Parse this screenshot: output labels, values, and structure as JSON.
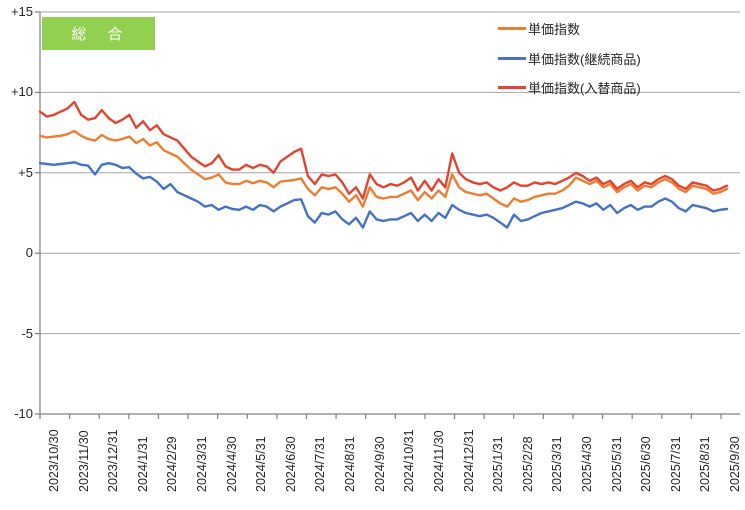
{
  "title": {
    "text": "総　合",
    "bg_color": "#92D050",
    "text_color": "#FFFFFF"
  },
  "legend": {
    "position": "top-right",
    "items": [
      {
        "label": "単価指数",
        "color": "#ED7D31"
      },
      {
        "label": "単価指数(継続商品)",
        "color": "#4472C4"
      },
      {
        "label": "単価指数(入替商品)",
        "color": "#E2452F"
      }
    ]
  },
  "colors": {
    "background": "#FFFFFF",
    "gridline": "#A6A6A6",
    "axis": "#808080",
    "tick_text": "#262626"
  },
  "chart_data": {
    "type": "line",
    "title": "総　合",
    "xlabel": "",
    "ylabel": "",
    "ylim": [
      -10,
      15
    ],
    "y_ticks": [
      15,
      10,
      5,
      0,
      -5,
      -10
    ],
    "y_tick_labels": [
      "+15",
      "+10",
      "+5",
      "0",
      "-5",
      "-10"
    ],
    "grid": true,
    "legend_position": "top-right",
    "x_resolution": "weekly points between monthly ticks",
    "x_tick_labels": [
      "2023/10/30",
      "2023/11/30",
      "2023/12/31",
      "2024/1/31",
      "2024/2/29",
      "2024/3/31",
      "2024/4/30",
      "2024/5/31",
      "2024/6/30",
      "2024/7/31",
      "2024/8/31",
      "2024/9/30",
      "2024/10/31",
      "2024/11/30",
      "2024/12/31",
      "2025/1/31",
      "2025/2/28",
      "2025/3/31",
      "2025/4/30",
      "2025/5/31",
      "2025/6/30",
      "2025/7/31",
      "2025/8/31",
      "2025/9/30"
    ],
    "series": [
      {
        "name": "単価指数",
        "color": "#ED7D31",
        "values": [
          7.3,
          7.2,
          7.25,
          7.3,
          7.4,
          7.6,
          7.3,
          7.1,
          7.0,
          7.35,
          7.1,
          7.0,
          7.1,
          7.25,
          6.85,
          7.1,
          6.7,
          6.9,
          6.4,
          6.2,
          6.0,
          5.6,
          5.2,
          4.9,
          4.6,
          4.7,
          4.9,
          4.4,
          4.3,
          4.3,
          4.5,
          4.35,
          4.5,
          4.4,
          4.1,
          4.45,
          4.5,
          4.55,
          4.65,
          4.0,
          3.6,
          4.1,
          4.0,
          4.1,
          3.7,
          3.2,
          3.6,
          2.9,
          4.1,
          3.5,
          3.4,
          3.5,
          3.5,
          3.7,
          3.9,
          3.3,
          3.8,
          3.4,
          3.9,
          3.5,
          4.9,
          4.1,
          3.8,
          3.7,
          3.6,
          3.7,
          3.4,
          3.1,
          2.9,
          3.4,
          3.2,
          3.3,
          3.5,
          3.6,
          3.7,
          3.7,
          3.9,
          4.2,
          4.7,
          4.5,
          4.3,
          4.5,
          4.1,
          4.3,
          3.8,
          4.1,
          4.3,
          3.9,
          4.2,
          4.1,
          4.4,
          4.6,
          4.4,
          4.0,
          3.8,
          4.2,
          4.1,
          4.0,
          3.7,
          3.8,
          4.0
        ]
      },
      {
        "name": "単価指数(継続商品)",
        "color": "#4472C4",
        "values": [
          5.6,
          5.55,
          5.5,
          5.55,
          5.6,
          5.65,
          5.5,
          5.45,
          4.9,
          5.5,
          5.6,
          5.5,
          5.3,
          5.35,
          4.95,
          4.65,
          4.75,
          4.45,
          4.0,
          4.3,
          3.8,
          3.6,
          3.4,
          3.2,
          2.9,
          3.0,
          2.7,
          2.9,
          2.75,
          2.7,
          2.9,
          2.7,
          3.0,
          2.9,
          2.6,
          2.9,
          3.1,
          3.3,
          3.35,
          2.3,
          1.9,
          2.5,
          2.4,
          2.6,
          2.1,
          1.8,
          2.2,
          1.6,
          2.6,
          2.1,
          2.0,
          2.1,
          2.1,
          2.3,
          2.5,
          2.0,
          2.4,
          2.0,
          2.5,
          2.2,
          3.0,
          2.7,
          2.5,
          2.4,
          2.3,
          2.4,
          2.2,
          1.9,
          1.6,
          2.4,
          2.0,
          2.1,
          2.3,
          2.5,
          2.6,
          2.7,
          2.8,
          3.0,
          3.2,
          3.1,
          2.9,
          3.1,
          2.7,
          3.0,
          2.5,
          2.8,
          3.0,
          2.7,
          2.9,
          2.9,
          3.2,
          3.4,
          3.2,
          2.8,
          2.6,
          3.0,
          2.9,
          2.8,
          2.6,
          2.7,
          2.75
        ]
      },
      {
        "name": "単価指数(入替商品)",
        "color": "#E2452F",
        "values": [
          8.8,
          8.5,
          8.6,
          8.8,
          9.0,
          9.4,
          8.6,
          8.3,
          8.4,
          8.9,
          8.4,
          8.1,
          8.3,
          8.6,
          7.8,
          8.2,
          7.65,
          7.95,
          7.4,
          7.2,
          7.0,
          6.5,
          6.0,
          5.7,
          5.4,
          5.6,
          6.1,
          5.4,
          5.2,
          5.2,
          5.5,
          5.3,
          5.5,
          5.4,
          5.0,
          5.7,
          6.0,
          6.3,
          6.5,
          4.8,
          4.3,
          4.9,
          4.8,
          4.9,
          4.4,
          3.7,
          4.1,
          3.4,
          4.9,
          4.3,
          4.1,
          4.3,
          4.2,
          4.4,
          4.7,
          3.9,
          4.5,
          3.9,
          4.6,
          4.1,
          6.2,
          5.0,
          4.6,
          4.4,
          4.3,
          4.4,
          4.1,
          3.9,
          4.1,
          4.4,
          4.2,
          4.2,
          4.4,
          4.3,
          4.4,
          4.3,
          4.5,
          4.7,
          5.0,
          4.8,
          4.5,
          4.7,
          4.3,
          4.5,
          4.0,
          4.3,
          4.5,
          4.1,
          4.4,
          4.3,
          4.6,
          4.8,
          4.6,
          4.2,
          4.0,
          4.4,
          4.3,
          4.2,
          3.9,
          4.0,
          4.2
        ]
      }
    ]
  }
}
